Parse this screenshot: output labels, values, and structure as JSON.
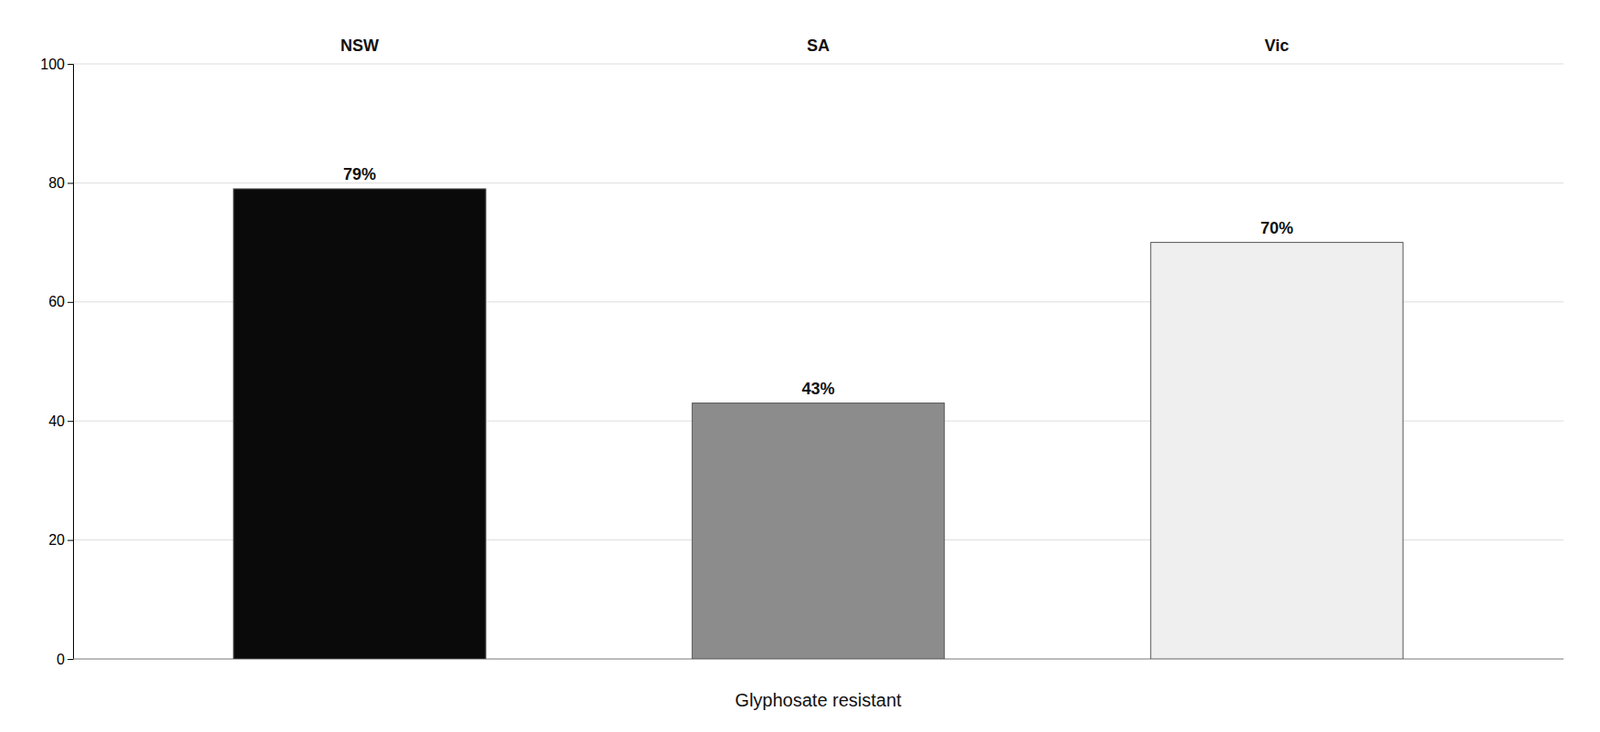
{
  "chart_data": {
    "type": "bar",
    "categories": [
      "NSW",
      "SA",
      "Vic"
    ],
    "values": [
      79,
      43,
      70
    ],
    "value_labels": [
      "79%",
      "43%",
      "70%"
    ],
    "colors": [
      "#0a0a0a",
      "#8c8c8c",
      "#efefef"
    ],
    "xlabel": "Glyphosate resistant",
    "ylim": [
      0,
      100
    ],
    "yticks": [
      0,
      20,
      40,
      60,
      80,
      100
    ],
    "grid": true,
    "data_labels": true
  }
}
